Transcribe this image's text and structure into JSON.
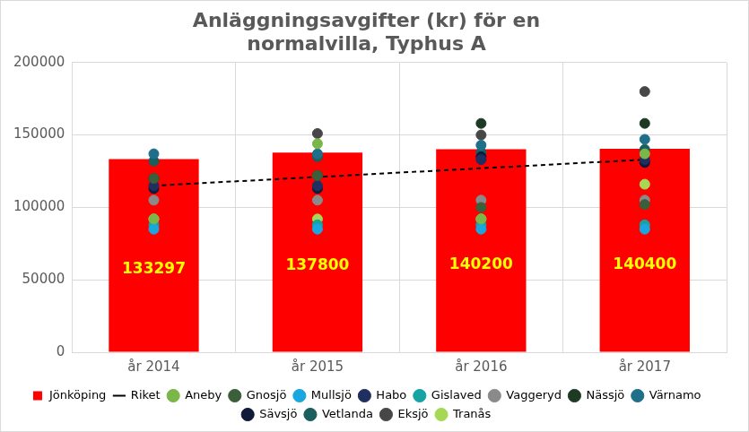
{
  "chart_data": {
    "type": "bar",
    "title": [
      "Anläggningsavgifter (kr) för en",
      "normalvilla, Typhus A"
    ],
    "categories": [
      "år 2014",
      "år 2015",
      "år 2016",
      "år 2017"
    ],
    "ylim": [
      0,
      200000
    ],
    "yticks": [
      0,
      50000,
      100000,
      150000,
      200000
    ],
    "grid": true,
    "legend": "bottom",
    "series": [
      {
        "name": "Jönköping",
        "type": "bar",
        "color": "#ff0000",
        "data_labels": true,
        "values": [
          133297,
          137800,
          140200,
          140400
        ]
      },
      {
        "name": "Riket",
        "type": "line",
        "line_style": "dashed",
        "color": "#000000",
        "values": [
          115000,
          121000,
          127000,
          133000
        ]
      },
      {
        "name": "Aneby",
        "type": "scatter",
        "marker": "circle",
        "color": "#7ab648",
        "values": [
          92000,
          144000,
          92000,
          137000
        ]
      },
      {
        "name": "Gnosjö",
        "type": "scatter",
        "marker": "circle",
        "color": "#3a5f3a",
        "values": [
          120000,
          122000,
          100000,
          102000
        ]
      },
      {
        "name": "Mullsjö",
        "type": "scatter",
        "marker": "circle",
        "color": "#1aa7e0",
        "values": [
          85000,
          85000,
          85000,
          85000
        ]
      },
      {
        "name": "Habo",
        "type": "scatter",
        "marker": "circle",
        "color": "#1f2f5f",
        "values": [
          115000,
          115000,
          133000,
          133000
        ]
      },
      {
        "name": "Gislaved",
        "type": "scatter",
        "marker": "circle",
        "color": "#16a3a3",
        "values": [
          88000,
          88000,
          88000,
          88000
        ]
      },
      {
        "name": "Vaggeryd",
        "type": "scatter",
        "marker": "circle",
        "color": "#8a8a8a",
        "values": [
          105000,
          105000,
          105000,
          105000
        ]
      },
      {
        "name": "Nässjö",
        "type": "scatter",
        "marker": "circle",
        "color": "#1c3a24",
        "values": [
          120000,
          122000,
          158000,
          158000
        ]
      },
      {
        "name": "Värnamo",
        "type": "scatter",
        "marker": "circle",
        "color": "#1f6f8b",
        "values": [
          137000,
          137000,
          143000,
          147000
        ]
      },
      {
        "name": "Sävsjö",
        "type": "scatter",
        "marker": "circle",
        "color": "#101a3a",
        "values": [
          113000,
          113000,
          135000,
          131000
        ]
      },
      {
        "name": "Vetlanda",
        "type": "scatter",
        "marker": "circle",
        "color": "#1b5e5e",
        "values": [
          132000,
          135000,
          138000,
          140000
        ]
      },
      {
        "name": "Eksjö",
        "type": "scatter",
        "marker": "circle",
        "color": "#474747",
        "values": [
          120000,
          151000,
          150000,
          180000
        ]
      },
      {
        "name": "Tranås",
        "type": "scatter",
        "marker": "circle",
        "color": "#a6d854",
        "values": [
          92000,
          92000,
          92000,
          116000
        ]
      }
    ]
  }
}
